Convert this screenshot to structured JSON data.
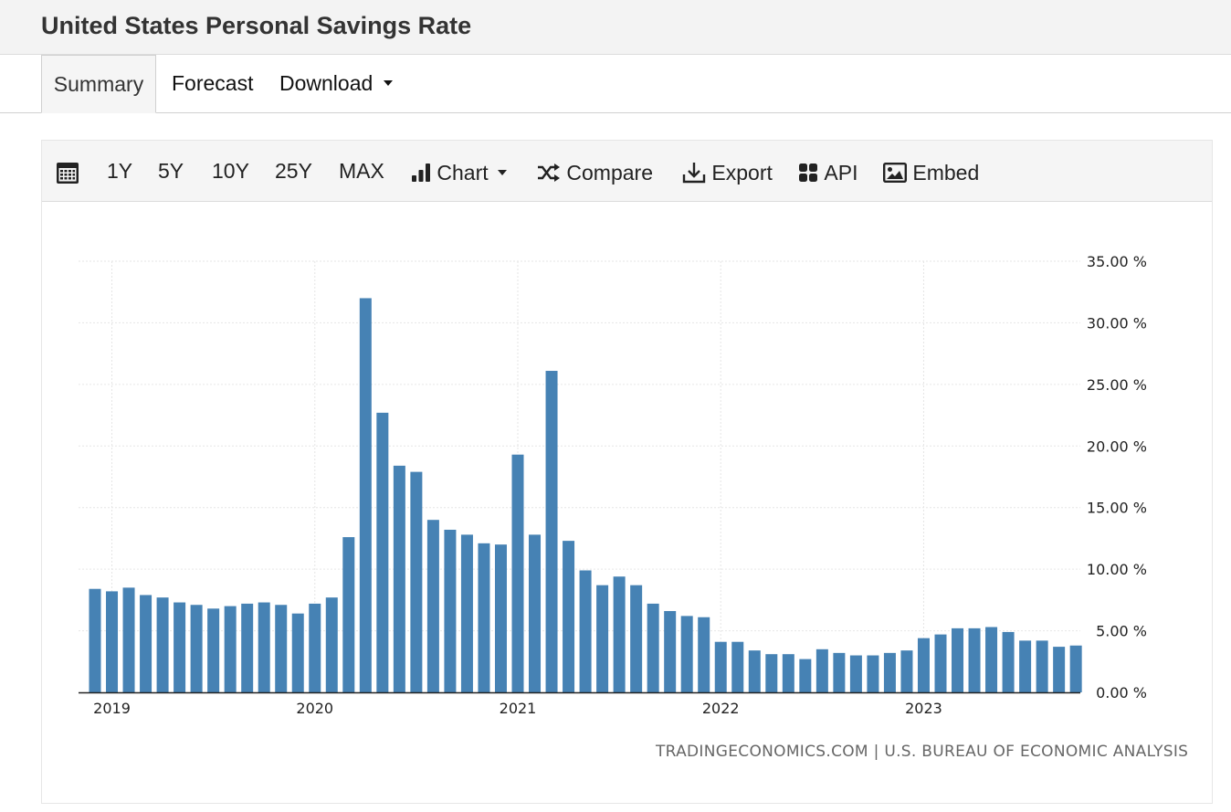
{
  "header": {
    "title": "United States Personal Savings Rate"
  },
  "tabs": [
    {
      "label": "Summary"
    },
    {
      "label": "Forecast"
    },
    {
      "label": "Download"
    }
  ],
  "toolbar": {
    "ranges": [
      "1Y",
      "5Y",
      "10Y",
      "25Y",
      "MAX"
    ],
    "chart_label": "Chart",
    "compare_label": "Compare",
    "export_label": "Export",
    "api_label": "API",
    "embed_label": "Embed",
    "icons": [
      "calendar-icon",
      "bar-chart-icon",
      "shuffle-icon",
      "download-icon",
      "grid-icon",
      "image-icon"
    ]
  },
  "source": "TRADINGECONOMICS.COM | U.S. BUREAU OF ECONOMIC ANALYSIS",
  "colors": {
    "bar": "#4682b4",
    "grid": "#e6e6e6",
    "axis": "#222222"
  },
  "chart_data": {
    "type": "bar",
    "title": "",
    "xlabel": "",
    "ylabel": "",
    "x_tick_labels": [
      "2019",
      "2020",
      "2021",
      "2022",
      "2023"
    ],
    "y_tick_labels": [
      "0.00 %",
      "5.00 %",
      "10.00 %",
      "15.00 %",
      "20.00 %",
      "25.00 %",
      "30.00 %",
      "35.00 %"
    ],
    "ylim": [
      0,
      35
    ],
    "grid": true,
    "y_axis_position": "right",
    "start_month": "2018-12",
    "categories": [
      "2018-12",
      "2019-01",
      "2019-02",
      "2019-03",
      "2019-04",
      "2019-05",
      "2019-06",
      "2019-07",
      "2019-08",
      "2019-09",
      "2019-10",
      "2019-11",
      "2019-12",
      "2020-01",
      "2020-02",
      "2020-03",
      "2020-04",
      "2020-05",
      "2020-06",
      "2020-07",
      "2020-08",
      "2020-09",
      "2020-10",
      "2020-11",
      "2020-12",
      "2021-01",
      "2021-02",
      "2021-03",
      "2021-04",
      "2021-05",
      "2021-06",
      "2021-07",
      "2021-08",
      "2021-09",
      "2021-10",
      "2021-11",
      "2021-12",
      "2022-01",
      "2022-02",
      "2022-03",
      "2022-04",
      "2022-05",
      "2022-06",
      "2022-07",
      "2022-08",
      "2022-09",
      "2022-10",
      "2022-11",
      "2022-12",
      "2023-01",
      "2023-02",
      "2023-03",
      "2023-04",
      "2023-05",
      "2023-06",
      "2023-07",
      "2023-08",
      "2023-09",
      "2023-10"
    ],
    "values": [
      8.4,
      8.2,
      8.5,
      7.9,
      7.7,
      7.3,
      7.1,
      6.8,
      7.0,
      7.2,
      7.3,
      7.1,
      6.4,
      7.2,
      7.7,
      12.6,
      32.0,
      22.7,
      18.4,
      17.9,
      14.0,
      13.2,
      12.8,
      12.1,
      12.0,
      19.3,
      12.8,
      26.1,
      12.3,
      9.9,
      8.7,
      9.4,
      8.7,
      7.2,
      6.6,
      6.2,
      6.1,
      4.1,
      4.1,
      3.4,
      3.1,
      3.1,
      2.7,
      3.5,
      3.2,
      3.0,
      3.0,
      3.2,
      3.4,
      4.4,
      4.7,
      5.2,
      5.2,
      5.3,
      4.9,
      4.2,
      4.2,
      3.7,
      3.8
    ]
  }
}
